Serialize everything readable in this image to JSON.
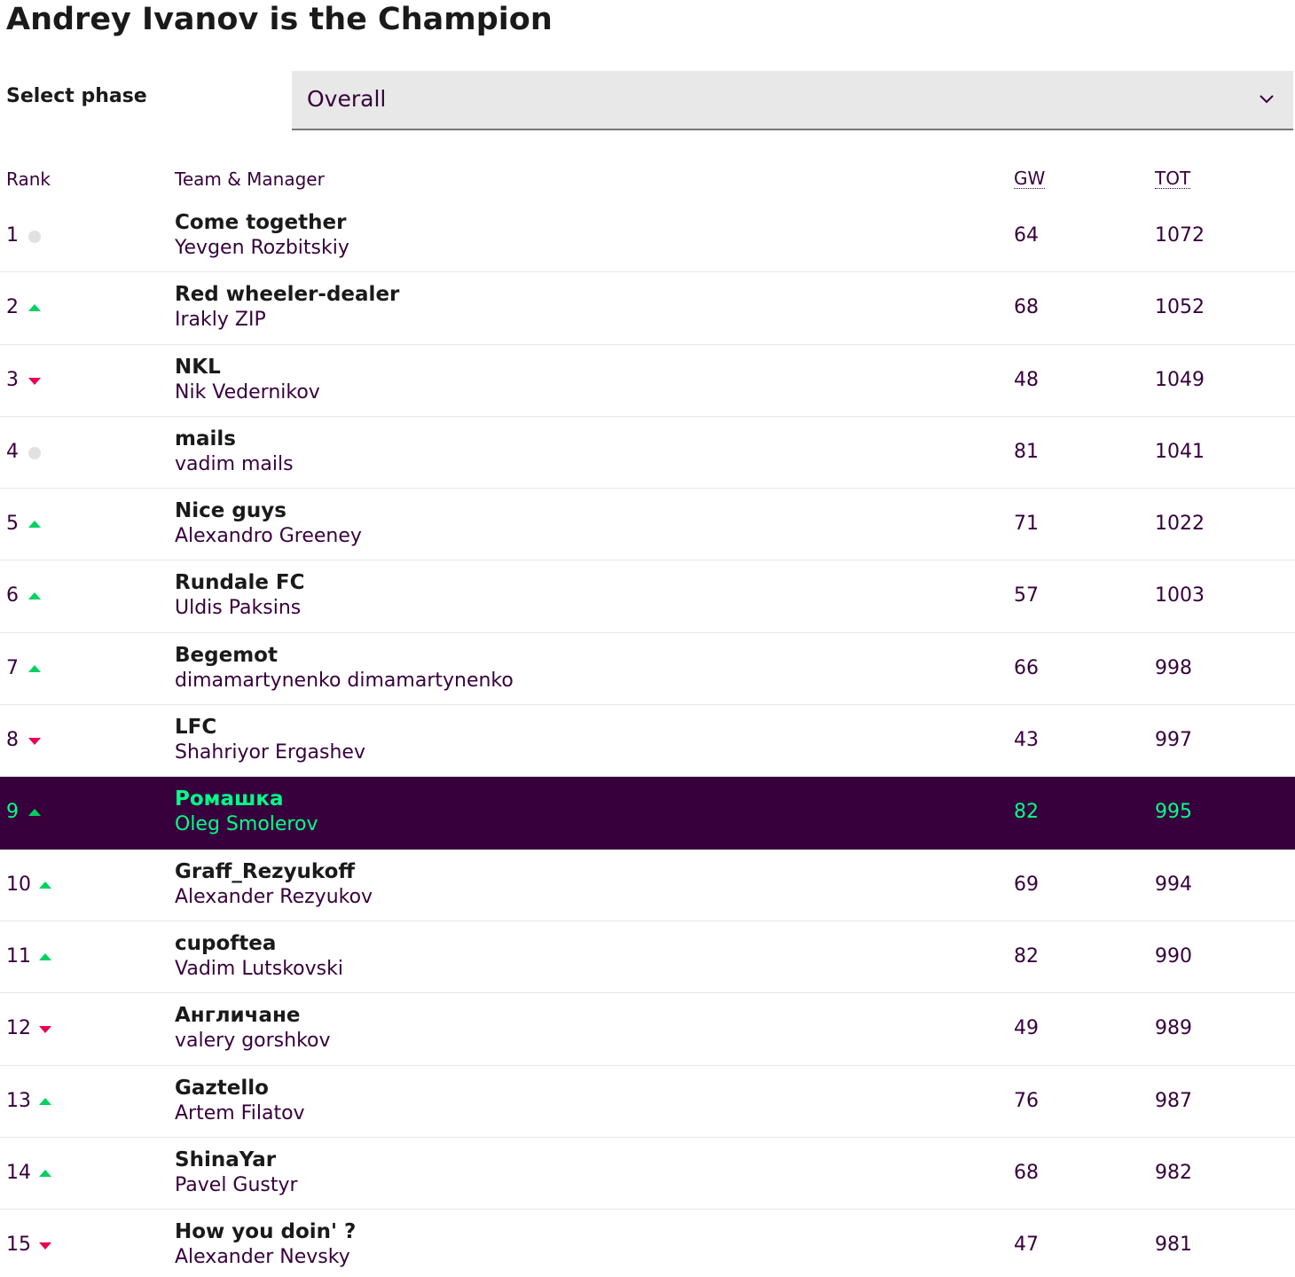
{
  "page_title": "Andrey Ivanov is the Champion",
  "phase": {
    "label": "Select phase",
    "selected": "Overall"
  },
  "table": {
    "columns": {
      "rank": "Rank",
      "team": "Team & Manager",
      "gw": "GW",
      "tot": "TOT"
    },
    "rows": [
      {
        "rank": "1",
        "movement": "same",
        "team": "Come together",
        "manager": "Yevgen Rozbitskiy",
        "gw": "64",
        "tot": "1072"
      },
      {
        "rank": "2",
        "movement": "up",
        "team": "Red wheeler-dealer",
        "manager": "Irakly ZIP",
        "gw": "68",
        "tot": "1052"
      },
      {
        "rank": "3",
        "movement": "down",
        "team": "NKL",
        "manager": "Nik Vedernikov",
        "gw": "48",
        "tot": "1049"
      },
      {
        "rank": "4",
        "movement": "same",
        "team": "mails",
        "manager": "vadim mails",
        "gw": "81",
        "tot": "1041"
      },
      {
        "rank": "5",
        "movement": "up",
        "team": "Nice guys",
        "manager": "Alexandro Greeney",
        "gw": "71",
        "tot": "1022"
      },
      {
        "rank": "6",
        "movement": "up",
        "team": "Rundale FC",
        "manager": "Uldis Paksins",
        "gw": "57",
        "tot": "1003"
      },
      {
        "rank": "7",
        "movement": "up",
        "team": "Begemot",
        "manager": "dimamartynenko dimamartynenko",
        "gw": "66",
        "tot": "998"
      },
      {
        "rank": "8",
        "movement": "down",
        "team": "LFC",
        "manager": "Shahriyor Ergashev",
        "gw": "43",
        "tot": "997"
      },
      {
        "rank": "9",
        "movement": "up",
        "team": "Ромашка",
        "manager": "Oleg Smolerov",
        "gw": "82",
        "tot": "995",
        "highlighted": true
      },
      {
        "rank": "10",
        "movement": "up",
        "team": "Graff_Rezyukoff",
        "manager": "Alexander Rezyukov",
        "gw": "69",
        "tot": "994"
      },
      {
        "rank": "11",
        "movement": "up",
        "team": "cupoftea",
        "manager": "Vadim Lutskovski",
        "gw": "82",
        "tot": "990"
      },
      {
        "rank": "12",
        "movement": "down",
        "team": "Англичане",
        "manager": "valery gorshkov",
        "gw": "49",
        "tot": "989"
      },
      {
        "rank": "13",
        "movement": "up",
        "team": "Gaztello",
        "manager": "Artem Filatov",
        "gw": "76",
        "tot": "987"
      },
      {
        "rank": "14",
        "movement": "up",
        "team": "ShinaYar",
        "manager": "Pavel Gustyr",
        "gw": "68",
        "tot": "982"
      },
      {
        "rank": "15",
        "movement": "down",
        "team": "How you doin' ?",
        "manager": "Alexander Nevsky",
        "gw": "47",
        "tot": "981"
      }
    ]
  },
  "icons": {
    "up": "arrow-up-icon",
    "down": "arrow-down-icon",
    "same": "no-change-dot-icon",
    "chevron": "chevron-down-icon"
  },
  "colors": {
    "up": "#00d160",
    "down": "#e90052",
    "same": "#e1e1e1",
    "highlight_bg": "#37003c",
    "highlight_text": "#00ff87",
    "primary_text": "#37003c"
  }
}
